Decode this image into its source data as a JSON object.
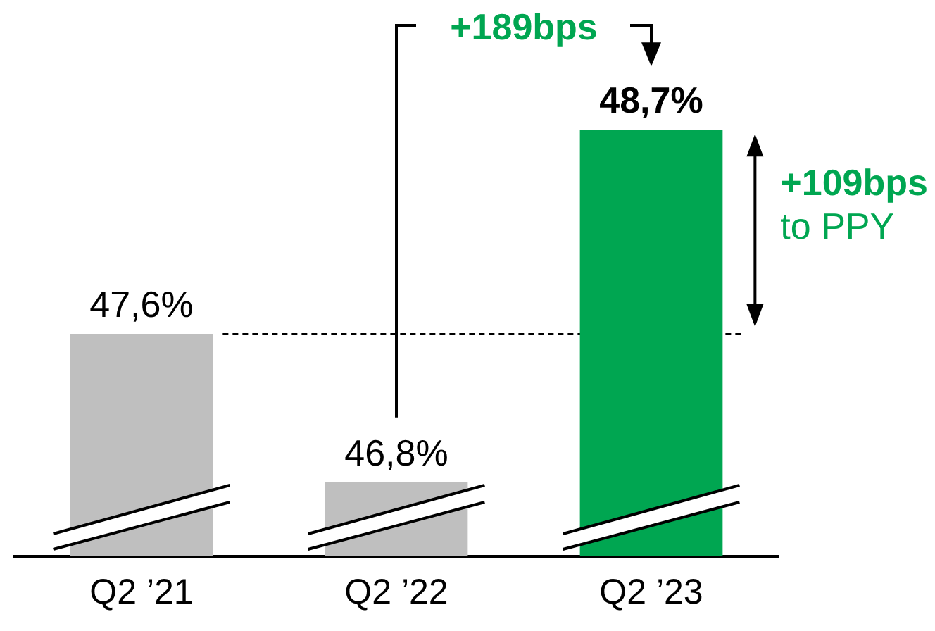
{
  "chart_data": {
    "type": "bar",
    "categories": [
      "Q2 ’21",
      "Q2 ’22",
      "Q2 ’23"
    ],
    "values": [
      47.6,
      46.8,
      48.7
    ],
    "colors": [
      "#bfbfbf",
      "#bfbfbf",
      "#00a651"
    ],
    "value_labels": [
      "47,6%",
      "46,8%",
      "48,7%"
    ],
    "ylim": [
      46.4,
      49.4
    ],
    "tick_labels": "x",
    "ref_lines": [
      {
        "axis": "y",
        "value": 47.6,
        "color": "#000000",
        "line_style": "dashed"
      }
    ],
    "annotations": [
      "+189bps",
      "+109bps",
      "to PPY"
    ]
  }
}
